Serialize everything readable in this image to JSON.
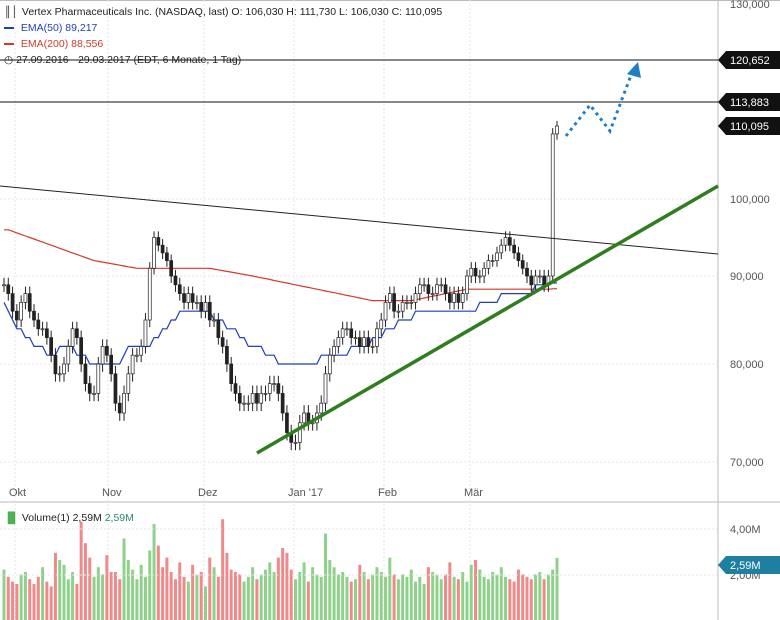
{
  "header": {
    "icon": "candlestick-icon",
    "title": "Vertex Pharmaceuticals Inc. (NASDAQ, last)",
    "ohlc": "O: 106,030  H: 111,730  L: 106,030  C: 110,095",
    "ema50_label": "EMA(50)",
    "ema50_value": "89,217",
    "ema200_label": "EMA(200)",
    "ema200_value": "88,556",
    "clock_icon": "clock-icon",
    "range": "27.09.2016 - 29.03.2017",
    "period": "(EDT, 6 Monate, 1 Tag)",
    "volume_label": "Volume(1)",
    "volume_value1": "2,59M",
    "volume_value2": "2,59M",
    "volume_icon": "bar-chart-icon"
  },
  "colors": {
    "up": "#4caf50",
    "down": "#222222",
    "ema50": "#1f3fbf",
    "ema200": "#d03a2a",
    "trend_green": "#2e7d1e",
    "projection": "#1e7fc9",
    "vol_up": "#8fd18a",
    "vol_down": "#f08a8a",
    "grid": "#e4e4e4"
  },
  "chart_data": {
    "type": "candlestick",
    "title": "Vertex Pharmaceuticals Inc. (NASDAQ, last)",
    "x_labels": [
      "Okt",
      "Nov",
      "Dez",
      "Jan '17",
      "Feb",
      "Mär"
    ],
    "y_ticks": [
      "70,000",
      "80,000",
      "90,000",
      "100,000",
      "130,000"
    ],
    "ylim": [
      66,
      132
    ],
    "price_levels": [
      {
        "value": 120.652,
        "label": "120,652"
      },
      {
        "value": 113.883,
        "label": "113,883"
      },
      {
        "value": 110.095,
        "label": "110,095"
      }
    ],
    "closes": [
      89,
      88,
      86,
      85,
      87,
      88,
      86,
      85,
      84,
      84,
      83,
      81,
      79,
      79,
      80,
      82,
      84,
      83,
      80,
      78,
      77,
      77,
      80,
      82,
      81,
      79,
      76,
      75,
      77,
      79,
      81,
      81,
      82,
      85,
      91,
      95,
      94,
      93,
      92,
      90,
      89,
      88,
      87,
      88,
      87,
      87,
      86,
      87,
      85,
      85,
      83,
      82,
      80,
      78,
      77,
      76,
      76,
      76,
      77,
      76,
      77,
      77,
      78,
      78,
      77,
      75,
      73,
      72,
      72,
      74,
      75,
      74,
      74,
      75,
      76,
      79,
      81,
      82,
      83,
      84,
      84,
      83,
      83,
      82,
      83,
      82,
      82,
      84,
      85,
      87,
      88,
      86,
      86,
      87,
      87,
      87,
      88,
      89,
      89,
      88,
      88,
      89,
      89,
      88,
      87,
      88,
      87,
      88,
      90,
      91,
      90,
      90,
      91,
      92,
      92,
      93,
      94,
      95,
      94,
      93,
      92,
      91,
      90,
      89,
      90,
      90,
      89,
      90,
      109,
      110.095
    ],
    "ema50": [
      87,
      86,
      85,
      84,
      84,
      83,
      83,
      82,
      82,
      82,
      81,
      81,
      81,
      82,
      82,
      82,
      82,
      81,
      81,
      81,
      80,
      80,
      80,
      80,
      80,
      80,
      80,
      80,
      81,
      82,
      82,
      82,
      82,
      82,
      82,
      83,
      83,
      84,
      84,
      85,
      85,
      86,
      86,
      86,
      86,
      86,
      86,
      86,
      86,
      85,
      85,
      85,
      84,
      84,
      84,
      83,
      83,
      82,
      82,
      82,
      82,
      81,
      81,
      81,
      80,
      80,
      80,
      80,
      80,
      80,
      80,
      80,
      80,
      80,
      81,
      81,
      81,
      81,
      81,
      81,
      81,
      82,
      82,
      82,
      82,
      82,
      83,
      83,
      83,
      84,
      84,
      84,
      85,
      85,
      85,
      85,
      86,
      86,
      86,
      86,
      86,
      86,
      86,
      86,
      86,
      86,
      86,
      86,
      86,
      86,
      86,
      87,
      87,
      87,
      87,
      87,
      88,
      88,
      88,
      88,
      88,
      88,
      88,
      88,
      89,
      89,
      89,
      89,
      89.2,
      89.217
    ],
    "ema200": [
      96,
      96,
      95.8,
      95.6,
      95.4,
      95.2,
      95,
      94.8,
      94.6,
      94.4,
      94.2,
      94,
      93.8,
      93.6,
      93.4,
      93.2,
      93,
      92.8,
      92.6,
      92.4,
      92.2,
      92,
      91.9,
      91.8,
      91.7,
      91.6,
      91.5,
      91.4,
      91.3,
      91.2,
      91.1,
      91,
      91,
      91,
      91,
      91,
      91,
      91,
      91,
      91,
      91,
      91,
      91,
      91,
      91,
      91,
      91,
      91,
      91,
      90.9,
      90.8,
      90.7,
      90.6,
      90.5,
      90.4,
      90.3,
      90.2,
      90.1,
      90,
      89.9,
      89.8,
      89.7,
      89.6,
      89.5,
      89.4,
      89.3,
      89.2,
      89.1,
      89,
      88.9,
      88.8,
      88.7,
      88.6,
      88.5,
      88.4,
      88.3,
      88.2,
      88.1,
      88,
      87.9,
      87.8,
      87.7,
      87.6,
      87.5,
      87.4,
      87.3,
      87.2,
      87.2,
      87.2,
      87.2,
      87.2,
      87.2,
      87.2,
      87.2,
      87.2,
      87.2,
      87.3,
      87.4,
      87.5,
      87.6,
      87.7,
      87.8,
      87.9,
      88,
      88.1,
      88.2,
      88.3,
      88.4,
      88.5,
      88.5,
      88.5,
      88.5,
      88.5,
      88.5,
      88.5,
      88.5,
      88.5,
      88.5,
      88.5,
      88.5,
      88.5,
      88.5,
      88.5,
      88.5,
      88.5,
      88.5,
      88.5,
      88.5,
      88.55,
      88.556
    ],
    "volume": [
      2.1,
      1.8,
      1.6,
      1.5,
      1.9,
      2.0,
      1.7,
      1.5,
      1.8,
      2.2,
      1.6,
      1.4,
      2.8,
      2.5,
      2.3,
      1.7,
      2.0,
      1.5,
      4.1,
      3.2,
      2.6,
      1.8,
      2.2,
      1.9,
      2.7,
      2.0,
      2.0,
      1.7,
      3.4,
      2.5,
      2.1,
      1.7,
      2.3,
      1.8,
      2.9,
      4.0,
      3.1,
      2.2,
      2.6,
      2.0,
      1.7,
      2.4,
      1.8,
      1.6,
      2.3,
      1.9,
      2.0,
      1.4,
      2.6,
      2.2,
      1.8,
      4.2,
      2.8,
      2.1,
      2.0,
      1.9,
      1.6,
      1.8,
      2.2,
      1.7,
      1.9,
      2.1,
      2.4,
      2.0,
      2.6,
      3.0,
      2.8,
      2.1,
      1.7,
      2.0,
      2.4,
      1.6,
      2.2,
      1.9,
      1.8,
      3.6,
      2.5,
      2.2,
      1.9,
      2.0,
      1.8,
      1.6,
      1.7,
      2.3,
      2.0,
      1.7,
      1.9,
      2.2,
      2.0,
      1.8,
      2.6,
      1.9,
      1.7,
      1.9,
      1.8,
      2.1,
      1.6,
      1.8,
      1.5,
      2.2,
      2.0,
      1.9,
      1.7,
      1.9,
      2.4,
      1.8,
      1.7,
      2.0,
      1.6,
      2.3,
      2.5,
      2.1,
      1.8,
      1.7,
      2.0,
      1.9,
      2.2,
      1.8,
      1.7,
      1.6,
      2.1,
      1.9,
      1.8,
      1.7,
      1.9,
      2.0,
      1.7,
      1.9,
      2.1,
      2.59
    ]
  }
}
